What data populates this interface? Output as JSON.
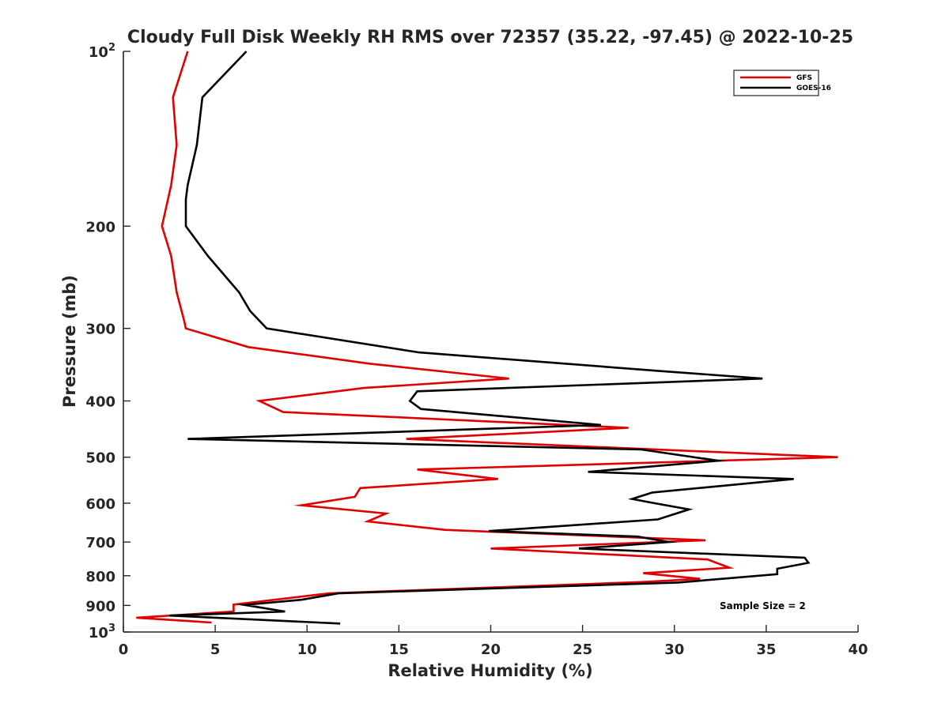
{
  "chart_data": {
    "type": "line",
    "title": "Cloudy Full Disk Weekly RH RMS over 72357 (35.22, -97.45) @ 2022-10-25",
    "xlabel": "Relative Humidity (%)",
    "ylabel": "Pressure (mb)",
    "xlim": [
      0,
      40
    ],
    "ylim": [
      100,
      1000
    ],
    "y_scale": "log",
    "y_reversed": true,
    "x_ticks": [
      "0",
      "5",
      "10",
      "15",
      "20",
      "25",
      "30",
      "35",
      "40"
    ],
    "y_ticks": [
      {
        "value": 100,
        "base": "10",
        "exp": "2"
      },
      {
        "value": 200,
        "label": "200"
      },
      {
        "value": 300,
        "label": "300"
      },
      {
        "value": 400,
        "label": "400"
      },
      {
        "value": 500,
        "label": "500"
      },
      {
        "value": 600,
        "label": "600"
      },
      {
        "value": 700,
        "label": "700"
      },
      {
        "value": 800,
        "label": "800"
      },
      {
        "value": 900,
        "label": "900"
      },
      {
        "value": 1000,
        "base": "10",
        "exp": "3"
      }
    ],
    "grid": false,
    "legend_position": "top-right",
    "annotation": "Sample Size = 2",
    "series": [
      {
        "name": "GFS",
        "color": "#e00000",
        "points": [
          [
            3.5,
            100
          ],
          [
            2.7,
            120
          ],
          [
            2.9,
            145
          ],
          [
            2.6,
            170
          ],
          [
            2.1,
            200
          ],
          [
            2.6,
            225
          ],
          [
            2.9,
            260
          ],
          [
            3.3,
            290
          ],
          [
            3.4,
            300
          ],
          [
            6.8,
            323
          ],
          [
            13.4,
            345
          ],
          [
            21.0,
            366
          ],
          [
            13.1,
            380
          ],
          [
            7.4,
            400
          ],
          [
            8.7,
            418
          ],
          [
            27.5,
            445
          ],
          [
            15.4,
            465
          ],
          [
            38.9,
            500
          ],
          [
            16.0,
            525
          ],
          [
            20.4,
            545
          ],
          [
            12.9,
            565
          ],
          [
            12.6,
            585
          ],
          [
            9.7,
            605
          ],
          [
            14.3,
            625
          ],
          [
            13.3,
            645
          ],
          [
            17.5,
            667
          ],
          [
            31.7,
            695
          ],
          [
            20.0,
            718
          ],
          [
            31.8,
            750
          ],
          [
            33.0,
            775
          ],
          [
            28.3,
            792
          ],
          [
            31.4,
            810
          ],
          [
            28.3,
            820
          ],
          [
            11.2,
            858
          ],
          [
            6.0,
            897
          ],
          [
            6.0,
            922
          ],
          [
            0.7,
            945
          ],
          [
            4.8,
            963
          ]
        ]
      },
      {
        "name": "GOES-16",
        "color": "#000000",
        "points": [
          [
            6.7,
            100
          ],
          [
            4.3,
            120
          ],
          [
            4.0,
            145
          ],
          [
            3.5,
            170
          ],
          [
            3.4,
            180
          ],
          [
            3.4,
            200
          ],
          [
            4.6,
            225
          ],
          [
            6.3,
            260
          ],
          [
            6.9,
            280
          ],
          [
            7.8,
            300
          ],
          [
            16.1,
            330
          ],
          [
            29.1,
            355
          ],
          [
            34.8,
            366
          ],
          [
            16.0,
            385
          ],
          [
            15.6,
            400
          ],
          [
            16.2,
            413
          ],
          [
            26.0,
            440
          ],
          [
            3.5,
            465
          ],
          [
            28.2,
            485
          ],
          [
            32.4,
            507
          ],
          [
            25.3,
            530
          ],
          [
            36.5,
            545
          ],
          [
            28.8,
            575
          ],
          [
            27.7,
            590
          ],
          [
            28.9,
            600
          ],
          [
            30.8,
            615
          ],
          [
            29.1,
            640
          ],
          [
            19.9,
            670
          ],
          [
            28.0,
            685
          ],
          [
            29.7,
            700
          ],
          [
            24.8,
            718
          ],
          [
            37.1,
            745
          ],
          [
            37.3,
            760
          ],
          [
            35.6,
            778
          ],
          [
            35.6,
            795
          ],
          [
            30.2,
            822
          ],
          [
            11.7,
            858
          ],
          [
            9.7,
            880
          ],
          [
            6.6,
            898
          ],
          [
            8.8,
            922
          ],
          [
            2.5,
            937
          ],
          [
            11.8,
            967
          ]
        ]
      }
    ]
  }
}
